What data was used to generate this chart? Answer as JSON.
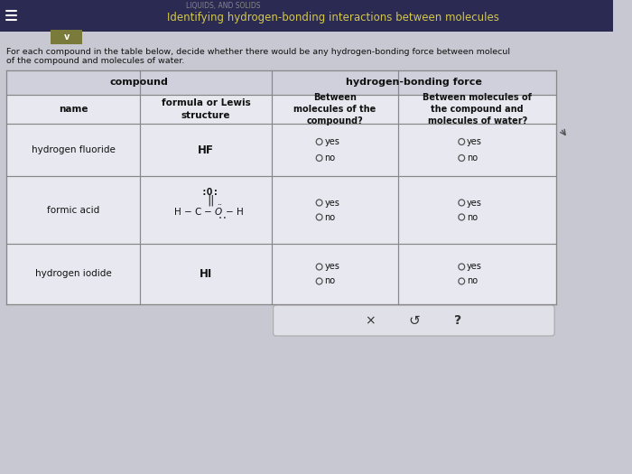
{
  "title": "Identifying hydrogen-bonding interactions between molecules",
  "subtitle_line1": "For each compound in the table below, decide whether there would be any hydrogen-bonding force between molecul",
  "subtitle_line2": "of the compound and molecules of water.",
  "bg_color": "#c8c8d2",
  "top_bar_color": "#2a2a52",
  "olive_bar_color": "#7a7a3a",
  "table_bg": "#e8e8f0",
  "header_bg": "#d0d0dc",
  "line_color": "#888888",
  "text_color": "#111111",
  "btn_bg": "#e0e0e8",
  "btn_border": "#aaaaaa"
}
